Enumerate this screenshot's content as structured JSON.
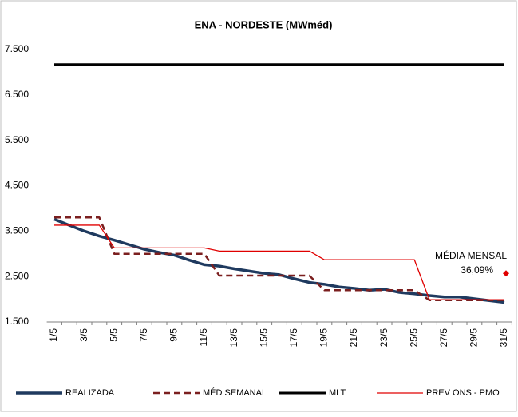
{
  "chart_data": {
    "type": "line",
    "title": "ENA - NORDESTE (MWméd)",
    "categories": [
      "1/5",
      null,
      "3/5",
      null,
      "5/5",
      null,
      "7/5",
      null,
      "9/5",
      null,
      "11/5",
      null,
      "13/5",
      null,
      "15/5",
      null,
      "17/5",
      null,
      "19/5",
      null,
      "21/5",
      null,
      "23/5",
      null,
      "25/5",
      null,
      "27/5",
      null,
      "29/5",
      null,
      "31/5"
    ],
    "ylim": [
      1500,
      7500
    ],
    "yticks": [
      {
        "value": 1500,
        "label": "1.500"
      },
      {
        "value": 2500,
        "label": "2.500"
      },
      {
        "value": 3500,
        "label": "3.500"
      },
      {
        "value": 4500,
        "label": "4.500"
      },
      {
        "value": 5500,
        "label": "5.500"
      },
      {
        "value": 6500,
        "label": "6.500"
      },
      {
        "value": 7500,
        "label": "7.500"
      }
    ],
    "grid": false,
    "legend": "bottom",
    "series": [
      {
        "name": "REALIZADA",
        "color": "#1f3a5f",
        "style": "solid",
        "width": 3.5,
        "values": [
          3760,
          3630,
          3500,
          3390,
          3300,
          3200,
          3100,
          3030,
          2970,
          2860,
          2760,
          2730,
          2670,
          2620,
          2570,
          2540,
          2450,
          2370,
          2330,
          2270,
          2240,
          2200,
          2220,
          2150,
          2120,
          2080,
          2050,
          2050,
          2010,
          1970,
          1930
        ]
      },
      {
        "name": "MÉD SEMANAL",
        "color": "#7b1f1f",
        "style": "dashed",
        "width": 2.5,
        "values": [
          3800,
          3800,
          3800,
          3800,
          3000,
          3000,
          3000,
          3000,
          3000,
          3000,
          3000,
          2520,
          2520,
          2520,
          2520,
          2520,
          2520,
          2520,
          2200,
          2200,
          2200,
          2200,
          2200,
          2200,
          2200,
          1980,
          1980,
          1980,
          1980,
          1980,
          1980
        ]
      },
      {
        "name": "MLT",
        "color": "#000000",
        "style": "solid",
        "width": 3,
        "values": [
          7170,
          7170,
          7170,
          7170,
          7170,
          7170,
          7170,
          7170,
          7170,
          7170,
          7170,
          7170,
          7170,
          7170,
          7170,
          7170,
          7170,
          7170,
          7170,
          7170,
          7170,
          7170,
          7170,
          7170,
          7170,
          7170,
          7170,
          7170,
          7170,
          7170,
          7170
        ]
      },
      {
        "name": "PREV ONS - PMO",
        "color": "#e00000",
        "style": "solid",
        "width": 1.3,
        "values": [
          3630,
          3630,
          3630,
          3630,
          3130,
          3130,
          3130,
          3130,
          3130,
          3130,
          3130,
          3060,
          3060,
          3060,
          3060,
          3060,
          3060,
          3060,
          2870,
          2870,
          2870,
          2870,
          2870,
          2870,
          2870,
          1990,
          1990,
          1990,
          1990,
          1990,
          1990
        ]
      }
    ],
    "annotation": {
      "lines": [
        "MÉDIA MENSAL",
        "36,09%"
      ],
      "marker_value": 2570,
      "marker_color": "#e00000"
    }
  }
}
